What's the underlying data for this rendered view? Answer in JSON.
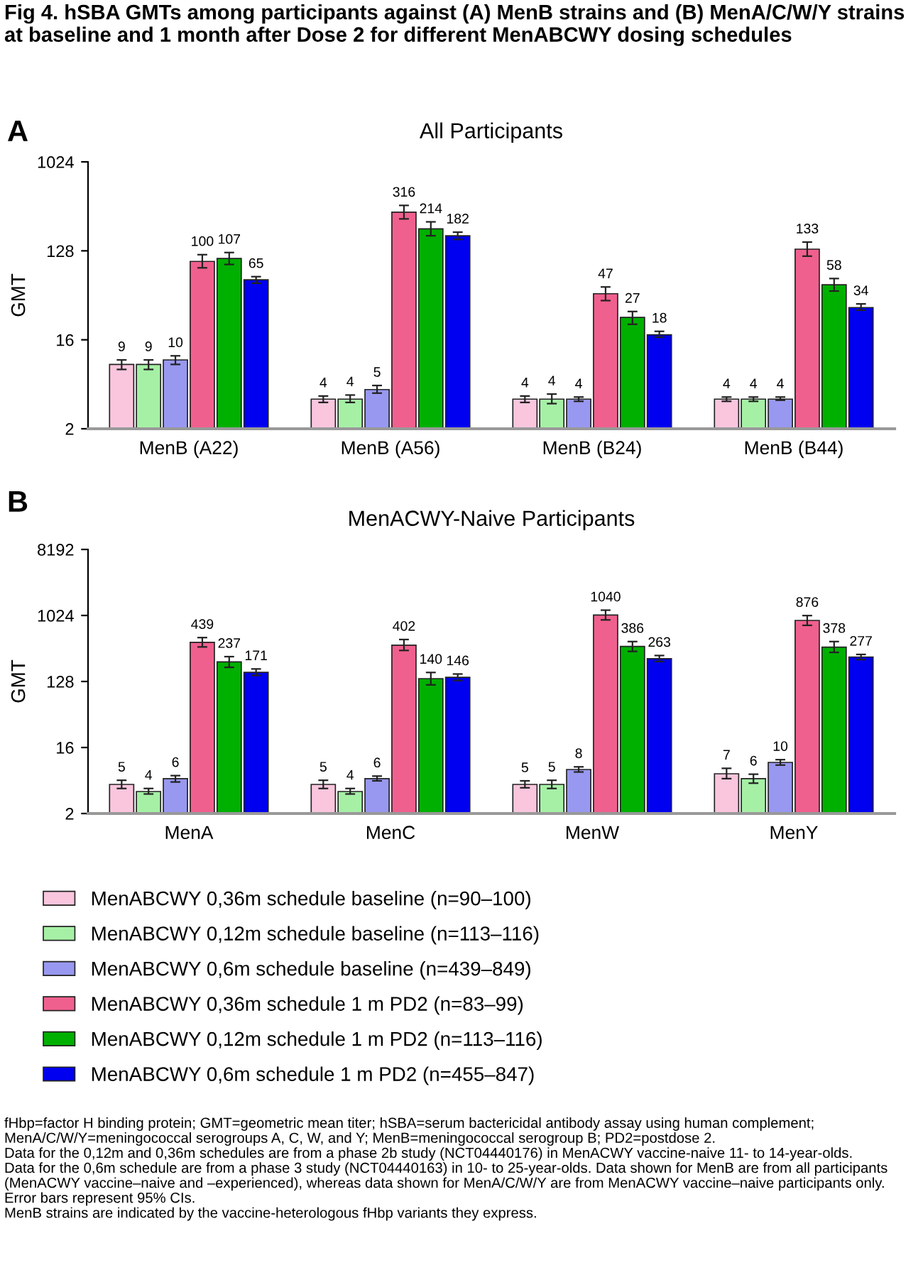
{
  "chart_data": [
    {
      "type": "bar",
      "title": "All Participants",
      "ylabel": "GMT",
      "categories": [
        "MenB (A22)",
        "MenB (A56)",
        "MenB (B24)",
        "MenB (B44)"
      ],
      "log": "y",
      "ylim": [
        2,
        1024
      ],
      "yticks": [
        2,
        16,
        128,
        1024
      ],
      "grid": false,
      "legend": false,
      "data_labels": true,
      "annotations": [
        "Fig 4. hSBA GMTs among participants against (A) MenB strains and (B) MenA/C/W/Y strains at baseline and 1 month after Dose 2 for different MenABCWY dosing schedules",
        "A"
      ],
      "series": [
        {
          "color": "#f9c6de",
          "values": [
            9,
            4,
            4,
            4
          ],
          "errors": [
            [
              8,
              10
            ],
            [
              3.7,
              4.3
            ],
            [
              3.7,
              4.3
            ],
            [
              3.8,
              4.2
            ]
          ]
        },
        {
          "color": "#a6f0a6",
          "values": [
            9,
            4,
            4,
            4
          ],
          "errors": [
            [
              8,
              10
            ],
            [
              3.7,
              4.4
            ],
            [
              3.6,
              4.5
            ],
            [
              3.8,
              4.2
            ]
          ]
        },
        {
          "color": "#9898f0",
          "values": [
            10,
            5,
            4,
            4
          ],
          "errors": [
            [
              9,
              11
            ],
            [
              4.6,
              5.5
            ],
            [
              3.8,
              4.2
            ],
            [
              3.9,
              4.2
            ]
          ]
        },
        {
          "color": "#f0608e",
          "values": [
            100,
            316,
            47,
            133
          ],
          "errors": [
            [
              86,
              117
            ],
            [
              270,
              370
            ],
            [
              40,
              55
            ],
            [
              113,
              157
            ]
          ]
        },
        {
          "color": "#00b000",
          "values": [
            107,
            214,
            27,
            58
          ],
          "errors": [
            [
              93,
              123
            ],
            [
              182,
              252
            ],
            [
              23,
              31
            ],
            [
              50,
              67
            ]
          ]
        },
        {
          "color": "#0000f0",
          "values": [
            65,
            182,
            18,
            34
          ],
          "errors": [
            [
              60,
              70
            ],
            [
              167,
              198
            ],
            [
              17,
              19.5
            ],
            [
              32,
              37
            ]
          ]
        }
      ]
    },
    {
      "type": "bar",
      "title": "MenACWY-Naive Participants",
      "ylabel": "GMT",
      "categories": [
        "MenA",
        "MenC",
        "MenW",
        "MenY"
      ],
      "log": "y",
      "ylim": [
        2,
        8192
      ],
      "yticks": [
        2,
        16,
        128,
        1024,
        8192
      ],
      "grid": false,
      "legend": "bottom",
      "data_labels": true,
      "annotations": [
        "B",
        "fHbp=factor H binding protein; GMT=geometric mean titer; hSBA=serum bactericidal antibody assay using human complement; MenA/C/W/Y=meningococcal serogroups A, C, W, and Y; MenB=meningococcal serogroup B; PD2=postdose 2.",
        "Data for the 0,12m and 0,36m schedules are from a phase 2b study (NCT04440176) in MenACWY vaccine-naive 11- to 14-year-olds.",
        "Data for the 0,6m schedule are from a phase 3 study (NCT04440163) in 10- to 25-year-olds. Data shown for MenB are from all participants (MenACWY vaccine–naive and –experienced), whereas data shown for MenA/C/W/Y are from MenACWY vaccine–naive participants only.",
        "Error bars represent 95% CIs.",
        "MenB strains are indicated by the vaccine-heterologous fHbp variants they express."
      ],
      "series": [
        {
          "name": "MenABCWY 0,36m schedule baseline (n=90–100)",
          "color": "#f9c6de",
          "values": [
            5,
            5,
            5,
            7
          ],
          "errors": [
            [
              4.4,
              5.7
            ],
            [
              4.4,
              5.7
            ],
            [
              4.5,
              5.6
            ],
            [
              6,
              8.3
            ]
          ]
        },
        {
          "name": "MenABCWY 0,12m schedule baseline (n=113–116)",
          "color": "#a6f0a6",
          "values": [
            4,
            4,
            5,
            6
          ],
          "errors": [
            [
              3.7,
              4.4
            ],
            [
              3.7,
              4.4
            ],
            [
              4.4,
              5.7
            ],
            [
              5.2,
              6.9
            ]
          ]
        },
        {
          "name": "MenABCWY 0,6m schedule baseline (n=439–849)",
          "color": "#9898f0",
          "values": [
            6,
            6,
            8,
            10
          ],
          "errors": [
            [
              5.4,
              6.6
            ],
            [
              5.6,
              6.5
            ],
            [
              7.4,
              8.7
            ],
            [
              9.2,
              10.9
            ]
          ]
        },
        {
          "name": "MenABCWY 0,36m schedule 1 m PD2 (n=83–99)",
          "color": "#f0608e",
          "values": [
            439,
            402,
            1040,
            876
          ],
          "errors": [
            [
              380,
              510
            ],
            [
              340,
              480
            ],
            [
              890,
              1210
            ],
            [
              750,
              1020
            ]
          ]
        },
        {
          "name": "MenABCWY 0,12m schedule 1 m PD2 (n=113–116)",
          "color": "#00b000",
          "values": [
            237,
            140,
            386,
            378
          ],
          "errors": [
            [
              200,
              280
            ],
            [
              115,
              170
            ],
            [
              330,
              450
            ],
            [
              320,
              450
            ]
          ]
        },
        {
          "name": "MenABCWY 0,6m schedule 1 m PD2 (n=455–847)",
          "color": "#0000f0",
          "values": [
            171,
            146,
            263,
            277
          ],
          "errors": [
            [
              155,
              190
            ],
            [
              132,
              162
            ],
            [
              240,
              290
            ],
            [
              255,
              300
            ]
          ]
        }
      ]
    }
  ]
}
